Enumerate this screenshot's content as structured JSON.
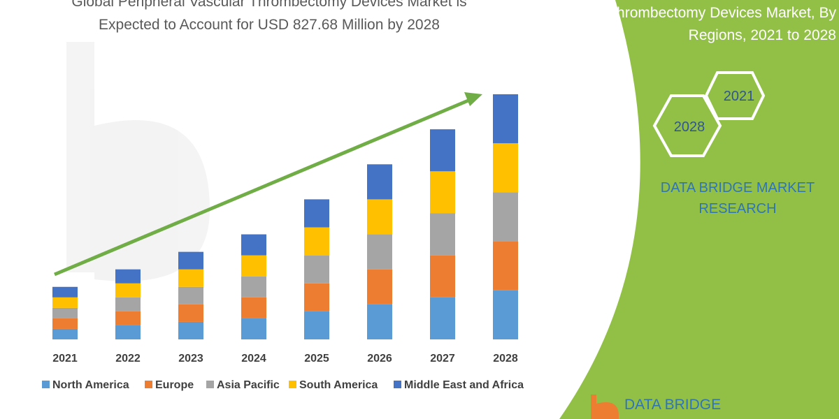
{
  "chart_data": {
    "type": "bar",
    "stacked": true,
    "title": "Global Peripheral Vascular Thrombectomy Devices Market is Expected to Account for USD 827.68 Million by 2028",
    "categories": [
      "2021",
      "2022",
      "2023",
      "2024",
      "2025",
      "2026",
      "2027",
      "2028"
    ],
    "series": [
      {
        "name": "North America",
        "color": "#5b9bd5",
        "values": [
          15,
          20,
          25,
          30,
          40,
          50,
          60,
          70
        ]
      },
      {
        "name": "Europe",
        "color": "#ed7d31",
        "values": [
          15,
          20,
          25,
          30,
          40,
          50,
          60,
          70
        ]
      },
      {
        "name": "Asia Pacific",
        "color": "#a5a5a5",
        "values": [
          15,
          20,
          25,
          30,
          40,
          50,
          60,
          70
        ]
      },
      {
        "name": "South America",
        "color": "#ffc000",
        "values": [
          15,
          20,
          25,
          30,
          40,
          50,
          60,
          70
        ]
      },
      {
        "name": "Middle East and Africa",
        "color": "#4472c4",
        "values": [
          15,
          20,
          25,
          30,
          40,
          50,
          60,
          70
        ]
      }
    ],
    "ylim": [
      0,
      350
    ],
    "grid": false,
    "legend": "bottom",
    "trend_arrow": {
      "color": "#70ad47"
    }
  },
  "header": {
    "title_line1": "Global Peripheral Vascular Thrombectomy Devices Market is",
    "title_line2": "Expected to Account for USD 827.68 Million by 2028"
  },
  "right_panel": {
    "background": "#92c047",
    "title_line1": "Thrombectomy Devices Market, By",
    "title_line2": "Regions, 2021 to 2028",
    "hex_year_start": "2021",
    "hex_year_end": "2028",
    "brand_line1": "DATA BRIDGE MARKET",
    "brand_line2": "RESEARCH",
    "logo_text": "DATA BRIDGE"
  }
}
